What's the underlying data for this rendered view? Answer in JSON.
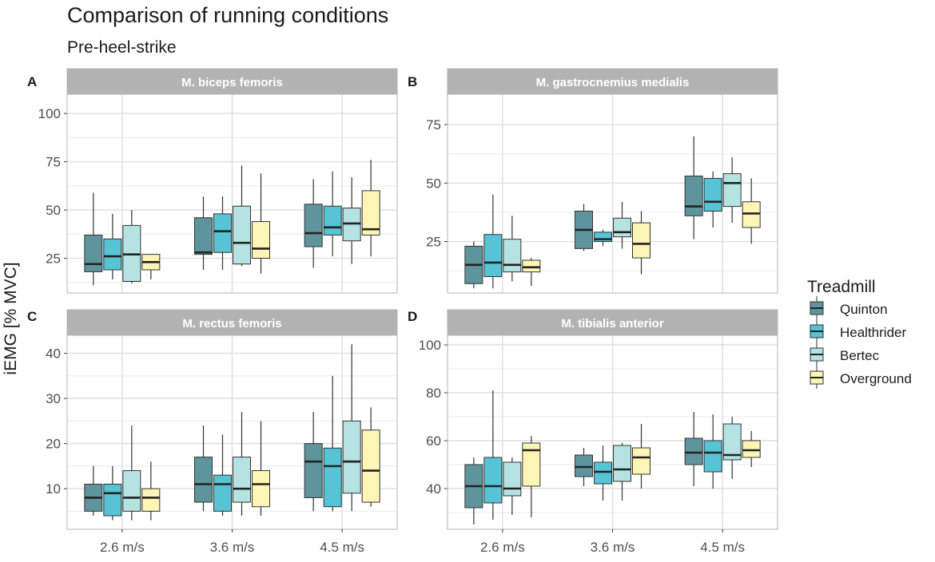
{
  "title": "Comparison of running conditions",
  "subtitle": "Pre-heel-strike",
  "ylabel": "iEMG [% MVC]",
  "legend": {
    "title": "Treadmill",
    "position": "right",
    "items": [
      {
        "name": "Quinton",
        "color": "#5e949c"
      },
      {
        "name": "Healthrider",
        "color": "#56c4d4"
      },
      {
        "name": "Bertec",
        "color": "#b4e3e2"
      },
      {
        "name": "Overground",
        "color": "#fdf5b5"
      }
    ]
  },
  "chart_data": [
    {
      "type": "box",
      "panel_letter": "A",
      "title": "M. biceps femoris",
      "categories": [
        "2.6 m/s",
        "3.6 m/s",
        "4.5 m/s"
      ],
      "ylim": [
        7,
        110
      ],
      "yticks": [
        25,
        50,
        75,
        100
      ],
      "show_x_ticks": false,
      "series": [
        {
          "name": "Quinton",
          "boxes": [
            {
              "min": 11,
              "q1": 18,
              "median": 22,
              "q3": 37,
              "max": 59
            },
            {
              "min": 19,
              "q1": 27,
              "median": 28,
              "q3": 46,
              "max": 57
            },
            {
              "min": 20,
              "q1": 31,
              "median": 38,
              "q3": 53,
              "max": 66
            }
          ]
        },
        {
          "name": "Healthrider",
          "boxes": [
            {
              "min": 14,
              "q1": 19,
              "median": 26,
              "q3": 35,
              "max": 48
            },
            {
              "min": 19,
              "q1": 28,
              "median": 39,
              "q3": 48,
              "max": 57
            },
            {
              "min": 26,
              "q1": 37,
              "median": 41,
              "q3": 52,
              "max": 70
            }
          ]
        },
        {
          "name": "Bertec",
          "boxes": [
            {
              "min": 12,
              "q1": 13,
              "median": 27,
              "q3": 42,
              "max": 50
            },
            {
              "min": 21,
              "q1": 22,
              "median": 33,
              "q3": 52,
              "max": 73
            },
            {
              "min": 22,
              "q1": 34,
              "median": 43,
              "q3": 51,
              "max": 67
            }
          ]
        },
        {
          "name": "Overground",
          "boxes": [
            {
              "min": 14,
              "q1": 19,
              "median": 23,
              "q3": 27,
              "max": 27
            },
            {
              "min": 17,
              "q1": 25,
              "median": 30,
              "q3": 44,
              "max": 69
            },
            {
              "min": 26,
              "q1": 37,
              "median": 40,
              "q3": 60,
              "max": 76
            }
          ]
        }
      ]
    },
    {
      "type": "box",
      "panel_letter": "B",
      "title": "M. gastrocnemius medialis",
      "categories": [
        "2.6 m/s",
        "3.6 m/s",
        "4.5 m/s"
      ],
      "ylim": [
        3,
        88
      ],
      "yticks": [
        25,
        50,
        75
      ],
      "show_x_ticks": false,
      "series": [
        {
          "name": "Quinton",
          "boxes": [
            {
              "min": 5,
              "q1": 7,
              "median": 15,
              "q3": 23,
              "max": 25
            },
            {
              "min": 21,
              "q1": 22,
              "median": 30,
              "q3": 38,
              "max": 41
            },
            {
              "min": 26,
              "q1": 36,
              "median": 40,
              "q3": 53,
              "max": 70
            }
          ]
        },
        {
          "name": "Healthrider",
          "boxes": [
            {
              "min": 5,
              "q1": 10,
              "median": 16,
              "q3": 28,
              "max": 45
            },
            {
              "min": 23,
              "q1": 25,
              "median": 26,
              "q3": 29,
              "max": 30
            },
            {
              "min": 31,
              "q1": 38,
              "median": 42,
              "q3": 52,
              "max": 55
            }
          ]
        },
        {
          "name": "Bertec",
          "boxes": [
            {
              "min": 8,
              "q1": 12,
              "median": 15,
              "q3": 26,
              "max": 36
            },
            {
              "min": 22,
              "q1": 27,
              "median": 29,
              "q3": 35,
              "max": 42
            },
            {
              "min": 33,
              "q1": 40,
              "median": 50,
              "q3": 54,
              "max": 61
            }
          ]
        },
        {
          "name": "Overground",
          "boxes": [
            {
              "min": 6,
              "q1": 12,
              "median": 14,
              "q3": 17,
              "max": 18
            },
            {
              "min": 11,
              "q1": 18,
              "median": 24,
              "q3": 33,
              "max": 38
            },
            {
              "min": 24,
              "q1": 31,
              "median": 37,
              "q3": 42,
              "max": 52
            }
          ]
        }
      ]
    },
    {
      "type": "box",
      "panel_letter": "C",
      "title": "M. rectus femoris",
      "categories": [
        "2.6 m/s",
        "3.6 m/s",
        "4.5 m/s"
      ],
      "ylim": [
        1,
        44
      ],
      "yticks": [
        10,
        20,
        30,
        40
      ],
      "show_x_ticks": true,
      "series": [
        {
          "name": "Quinton",
          "boxes": [
            {
              "min": 4,
              "q1": 5,
              "median": 8,
              "q3": 11,
              "max": 15
            },
            {
              "min": 5,
              "q1": 7,
              "median": 11,
              "q3": 17,
              "max": 24
            },
            {
              "min": 5,
              "q1": 8,
              "median": 16,
              "q3": 20,
              "max": 27
            }
          ]
        },
        {
          "name": "Healthrider",
          "boxes": [
            {
              "min": 3,
              "q1": 4,
              "median": 9,
              "q3": 11,
              "max": 15
            },
            {
              "min": 4,
              "q1": 5,
              "median": 11,
              "q3": 13,
              "max": 22
            },
            {
              "min": 5,
              "q1": 6,
              "median": 15,
              "q3": 19,
              "max": 35
            }
          ]
        },
        {
          "name": "Bertec",
          "boxes": [
            {
              "min": 3,
              "q1": 5,
              "median": 8,
              "q3": 14,
              "max": 24
            },
            {
              "min": 4,
              "q1": 7,
              "median": 10,
              "q3": 17,
              "max": 27
            },
            {
              "min": 5,
              "q1": 9,
              "median": 16,
              "q3": 25,
              "max": 42
            }
          ]
        },
        {
          "name": "Overground",
          "boxes": [
            {
              "min": 3,
              "q1": 5,
              "median": 8,
              "q3": 10,
              "max": 16
            },
            {
              "min": 4,
              "q1": 6,
              "median": 11,
              "q3": 14,
              "max": 25
            },
            {
              "min": 6,
              "q1": 7,
              "median": 14,
              "q3": 23,
              "max": 28
            }
          ]
        }
      ]
    },
    {
      "type": "box",
      "panel_letter": "D",
      "title": "M. tibialis anterior",
      "categories": [
        "2.6 m/s",
        "3.6 m/s",
        "4.5 m/s"
      ],
      "ylim": [
        23,
        104
      ],
      "yticks": [
        40,
        60,
        80,
        100
      ],
      "show_x_ticks": true,
      "series": [
        {
          "name": "Quinton",
          "boxes": [
            {
              "min": 25,
              "q1": 32,
              "median": 41,
              "q3": 50,
              "max": 53
            },
            {
              "min": 41,
              "q1": 45,
              "median": 49,
              "q3": 54,
              "max": 57
            },
            {
              "min": 41,
              "q1": 50,
              "median": 55,
              "q3": 61,
              "max": 72
            }
          ]
        },
        {
          "name": "Healthrider",
          "boxes": [
            {
              "min": 27,
              "q1": 34,
              "median": 41,
              "q3": 53,
              "max": 81
            },
            {
              "min": 35,
              "q1": 42,
              "median": 47,
              "q3": 51,
              "max": 58
            },
            {
              "min": 40,
              "q1": 47,
              "median": 55,
              "q3": 60,
              "max": 71
            }
          ]
        },
        {
          "name": "Bertec",
          "boxes": [
            {
              "min": 29,
              "q1": 37,
              "median": 40,
              "q3": 51,
              "max": 53
            },
            {
              "min": 35,
              "q1": 43,
              "median": 48,
              "q3": 58,
              "max": 59
            },
            {
              "min": 44,
              "q1": 52,
              "median": 54,
              "q3": 67,
              "max": 70
            }
          ]
        },
        {
          "name": "Overground",
          "boxes": [
            {
              "min": 28,
              "q1": 41,
              "median": 56,
              "q3": 59,
              "max": 62
            },
            {
              "min": 40,
              "q1": 46,
              "median": 53,
              "q3": 57,
              "max": 67
            },
            {
              "min": 49,
              "q1": 53,
              "median": 56,
              "q3": 60,
              "max": 64
            }
          ]
        }
      ]
    }
  ]
}
